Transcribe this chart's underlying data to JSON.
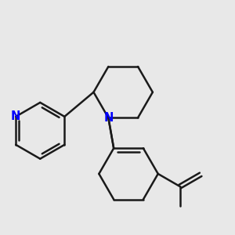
{
  "background_color": "#e8e8e8",
  "bond_color": "#1a1a1a",
  "nitrogen_color": "#0000ff",
  "line_width": 1.8,
  "font_size": 10.5
}
